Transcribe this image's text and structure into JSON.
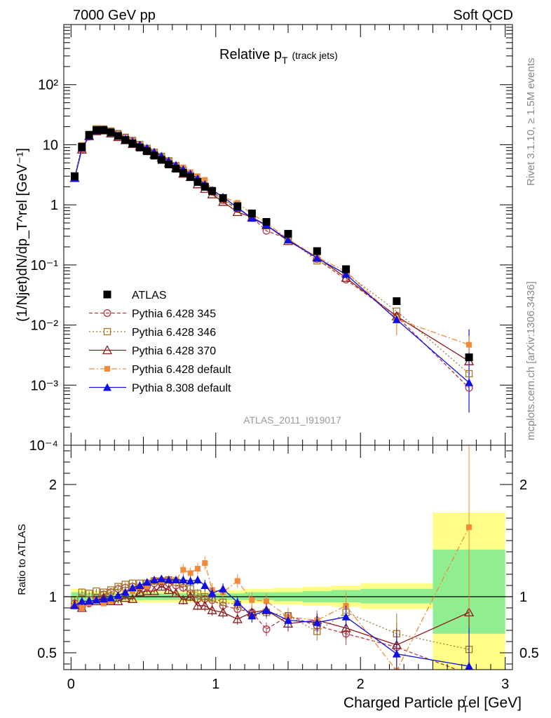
{
  "header": {
    "left": "7000 GeV pp",
    "right": "Soft QCD"
  },
  "side_labels": {
    "top": "Rivet 3.1.10, ≥ 1.5M events",
    "bottom": "mcplots.cern.ch [arXiv:1306.3436]"
  },
  "colors": {
    "atlas": "#000000",
    "p345": "#b03a48",
    "p346": "#a0782a",
    "p370": "#8b1a1a",
    "p6def": "#f28a3a",
    "p8def": "#1010e0",
    "band_green": "#90ee90",
    "band_yellow": "#ffff88"
  },
  "chart_data": [
    {
      "type": "scatter",
      "panel": "main",
      "title": "Relative p_T (track jets)",
      "title_main": "Relative p",
      "title_sub": "T",
      "title_note": "(track jets)",
      "ylabel": "(1/Njet)dN/dp_T^rel [GeV⁻¹]",
      "yscale": "log",
      "xlim": [
        -0.05,
        3.05
      ],
      "ylim": [
        0.0001,
        1000
      ],
      "y_tick_labels": [
        "10⁻⁴",
        "10⁻³",
        "10⁻²",
        "10⁻¹",
        "1",
        "10",
        "10²"
      ],
      "watermark": "ATLAS_2011_I919017",
      "legend_position": "lower-left",
      "x": [
        0.025,
        0.075,
        0.125,
        0.175,
        0.225,
        0.275,
        0.325,
        0.375,
        0.425,
        0.475,
        0.525,
        0.575,
        0.625,
        0.675,
        0.725,
        0.775,
        0.825,
        0.875,
        0.925,
        0.975,
        1.05,
        1.15,
        1.25,
        1.35,
        1.5,
        1.7,
        1.9,
        2.25,
        2.75
      ],
      "series": [
        {
          "name": "ATLAS",
          "key": "atlas",
          "marker": "square-filled",
          "line": "none",
          "y": [
            3.0,
            9.2,
            14.5,
            17.5,
            17.5,
            16.0,
            14.0,
            12.0,
            10.5,
            9.0,
            7.8,
            6.6,
            5.6,
            4.7,
            4.0,
            3.4,
            2.9,
            2.4,
            2.0,
            1.7,
            1.3,
            0.95,
            0.72,
            0.52,
            0.33,
            0.17,
            0.085,
            0.025,
            0.0029
          ]
        },
        {
          "name": "Pythia 6.428 345",
          "key": "p345",
          "marker": "circle-open",
          "line": "dashed",
          "y": [
            2.8,
            8.3,
            13.6,
            17.3,
            17.8,
            16.6,
            15.0,
            13.0,
            11.4,
            9.7,
            8.5,
            7.4,
            6.3,
            5.3,
            4.4,
            3.7,
            3.0,
            2.4,
            2.0,
            1.65,
            1.2,
            0.85,
            0.62,
            0.37,
            0.27,
            0.125,
            0.057,
            0.014,
            0.0009
          ]
        },
        {
          "name": "Pythia 6.428 346",
          "key": "p346",
          "marker": "square-open",
          "line": "dotted",
          "y": [
            2.9,
            9.6,
            14.9,
            18.4,
            18.3,
            16.9,
            15.3,
            13.3,
            11.8,
            10.1,
            8.7,
            7.5,
            6.4,
            5.4,
            4.5,
            3.8,
            3.1,
            2.5,
            2.0,
            1.68,
            1.24,
            0.88,
            0.6,
            0.45,
            0.27,
            0.117,
            0.073,
            0.017,
            0.00155
          ]
        },
        {
          "name": "Pythia 6.428 370",
          "key": "p370",
          "marker": "triangle-open",
          "line": "solid",
          "y": [
            2.8,
            8.3,
            13.9,
            16.8,
            17.3,
            15.4,
            13.4,
            11.9,
            10.3,
            9.4,
            8.2,
            6.9,
            6.1,
            5.0,
            4.1,
            3.3,
            2.9,
            2.2,
            1.85,
            1.5,
            1.12,
            0.76,
            0.62,
            0.46,
            0.25,
            0.135,
            0.061,
            0.014,
            0.0025
          ]
        },
        {
          "name": "Pythia 6.428 default",
          "key": "p6def",
          "marker": "square-filled-small",
          "line": "dashdot",
          "y": [
            2.8,
            8.3,
            13.6,
            17.0,
            16.4,
            15.4,
            14.0,
            12.5,
            11.0,
            9.8,
            8.5,
            7.6,
            6.4,
            5.4,
            4.6,
            4.2,
            3.5,
            3.0,
            2.6,
            1.8,
            1.35,
            1.08,
            0.7,
            0.5,
            0.27,
            0.135,
            0.078,
            0.0125,
            0.0047
          ]
        },
        {
          "name": "Pythia 8.308 default",
          "key": "p8def",
          "marker": "triangle-filled",
          "line": "solid",
          "y": [
            2.75,
            8.8,
            13.9,
            17.0,
            17.2,
            15.8,
            14.2,
            12.5,
            11.3,
            9.9,
            8.8,
            7.6,
            6.5,
            5.4,
            4.6,
            3.9,
            3.3,
            2.75,
            2.2,
            1.75,
            1.35,
            0.9,
            0.6,
            0.46,
            0.26,
            0.13,
            0.07,
            0.0123,
            0.0011
          ]
        }
      ]
    },
    {
      "type": "scatter",
      "panel": "ratio",
      "ylabel": "Ratio to ATLAS",
      "xlabel": "Charged Particle p_T^rel [GeV]",
      "xlabel_main": "Charged Particle p",
      "xlabel_sub": "T",
      "xlabel_sup": "r",
      "xlabel_rest": "el [GeV]",
      "xlim": [
        -0.05,
        3.05
      ],
      "ylim": [
        0.35,
        2.35
      ],
      "x_ticks": [
        0,
        1,
        2,
        3
      ],
      "x_tick_labels": [
        "0",
        "1",
        "2",
        "3"
      ],
      "y_ticks": [
        0.5,
        1,
        2
      ],
      "y_tick_labels": [
        "0.5",
        "1",
        "2"
      ],
      "bands": [
        {
          "x0": 0.0,
          "x1": 0.1,
          "green": [
            0.96,
            1.04
          ],
          "yellow": [
            0.93,
            1.07
          ]
        },
        {
          "x0": 0.1,
          "x1": 0.3,
          "green": [
            0.97,
            1.03
          ],
          "yellow": [
            0.95,
            1.05
          ]
        },
        {
          "x0": 0.3,
          "x1": 1.0,
          "green": [
            0.97,
            1.03
          ],
          "yellow": [
            0.95,
            1.05
          ]
        },
        {
          "x0": 1.0,
          "x1": 1.2,
          "green": [
            0.97,
            1.03
          ],
          "yellow": [
            0.94,
            1.06
          ]
        },
        {
          "x0": 1.2,
          "x1": 1.4,
          "green": [
            0.97,
            1.04
          ],
          "yellow": [
            0.94,
            1.07
          ]
        },
        {
          "x0": 1.4,
          "x1": 1.6,
          "green": [
            0.96,
            1.04
          ],
          "yellow": [
            0.93,
            1.08
          ]
        },
        {
          "x0": 1.6,
          "x1": 1.8,
          "green": [
            0.95,
            1.05
          ],
          "yellow": [
            0.92,
            1.09
          ]
        },
        {
          "x0": 1.8,
          "x1": 2.0,
          "green": [
            0.95,
            1.06
          ],
          "yellow": [
            0.91,
            1.1
          ]
        },
        {
          "x0": 2.0,
          "x1": 2.5,
          "green": [
            0.94,
            1.07
          ],
          "yellow": [
            0.89,
            1.12
          ]
        },
        {
          "x0": 2.5,
          "x1": 3.0,
          "green": [
            0.67,
            1.42
          ],
          "yellow": [
            0.35,
            1.75
          ]
        }
      ],
      "series": [
        {
          "name": "Pythia 6.428 345",
          "key": "p345",
          "y": [
            0.94,
            0.91,
            0.94,
            0.99,
            1.02,
            1.04,
            1.07,
            1.08,
            1.09,
            1.08,
            1.09,
            1.12,
            1.12,
            1.12,
            1.1,
            1.08,
            1.03,
            0.98,
            0.98,
            0.97,
            0.92,
            0.89,
            0.86,
            0.71,
            0.83,
            0.74,
            0.67,
            0.55,
            0.31
          ],
          "err": [
            0.03,
            0.03,
            0.03,
            0.02,
            0.02,
            0.02,
            0.02,
            0.02,
            0.02,
            0.02,
            0.02,
            0.02,
            0.03,
            0.03,
            0.03,
            0.04,
            0.04,
            0.04,
            0.05,
            0.05,
            0.05,
            0.05,
            0.06,
            0.06,
            0.07,
            0.08,
            0.1,
            0.22,
            0.4
          ]
        },
        {
          "name": "Pythia 6.428 346",
          "key": "p346",
          "y": [
            0.97,
            1.04,
            1.03,
            1.05,
            1.04,
            1.06,
            1.09,
            1.11,
            1.12,
            1.12,
            1.12,
            1.14,
            1.14,
            1.15,
            1.13,
            1.12,
            1.07,
            1.03,
            1.0,
            0.99,
            0.95,
            0.93,
            0.83,
            0.86,
            0.83,
            0.69,
            0.86,
            0.67,
            0.53
          ],
          "err": [
            0.03,
            0.03,
            0.02,
            0.02,
            0.02,
            0.02,
            0.02,
            0.02,
            0.02,
            0.02,
            0.02,
            0.02,
            0.03,
            0.03,
            0.03,
            0.04,
            0.04,
            0.04,
            0.05,
            0.05,
            0.05,
            0.05,
            0.06,
            0.06,
            0.07,
            0.08,
            0.1,
            0.18,
            0.3
          ]
        },
        {
          "name": "Pythia 6.428 370",
          "key": "p370",
          "y": [
            0.93,
            0.9,
            0.96,
            0.96,
            0.99,
            0.96,
            0.96,
            0.99,
            0.98,
            1.04,
            1.05,
            1.05,
            1.09,
            1.06,
            1.03,
            0.97,
            1.0,
            0.92,
            0.92,
            0.88,
            0.86,
            0.8,
            0.86,
            0.88,
            0.76,
            0.79,
            0.72,
            0.57,
            0.86
          ],
          "err": [
            0.03,
            0.03,
            0.02,
            0.02,
            0.02,
            0.02,
            0.02,
            0.02,
            0.02,
            0.02,
            0.02,
            0.02,
            0.03,
            0.03,
            0.03,
            0.04,
            0.04,
            0.04,
            0.05,
            0.05,
            0.05,
            0.05,
            0.06,
            0.06,
            0.07,
            0.08,
            0.1,
            0.15,
            0.55
          ]
        },
        {
          "name": "Pythia 6.428 default",
          "key": "p6def",
          "y": [
            0.92,
            0.9,
            0.94,
            0.97,
            0.94,
            0.96,
            1.0,
            1.04,
            1.05,
            1.09,
            1.09,
            1.15,
            1.14,
            1.15,
            1.15,
            1.24,
            1.21,
            1.25,
            1.3,
            1.06,
            1.04,
            1.14,
            0.97,
            0.96,
            0.82,
            0.79,
            0.92,
            0.34,
            1.62
          ],
          "err": [
            0.03,
            0.03,
            0.02,
            0.02,
            0.02,
            0.02,
            0.02,
            0.02,
            0.02,
            0.02,
            0.03,
            0.03,
            0.03,
            0.04,
            0.04,
            0.05,
            0.05,
            0.05,
            0.06,
            0.06,
            0.06,
            0.06,
            0.07,
            0.07,
            0.08,
            0.09,
            0.12,
            0.25,
            0.75
          ]
        },
        {
          "name": "Pythia 8.308 default",
          "key": "p8def",
          "y": [
            0.92,
            0.96,
            0.96,
            0.97,
            0.98,
            0.99,
            1.01,
            1.04,
            1.08,
            1.1,
            1.13,
            1.15,
            1.16,
            1.15,
            1.15,
            1.15,
            1.14,
            1.15,
            1.1,
            1.03,
            1.07,
            0.95,
            0.83,
            0.88,
            0.79,
            0.77,
            0.82,
            0.49,
            0.38
          ],
          "err": [
            0.03,
            0.03,
            0.02,
            0.02,
            0.02,
            0.02,
            0.02,
            0.02,
            0.02,
            0.02,
            0.02,
            0.02,
            0.03,
            0.03,
            0.03,
            0.04,
            0.04,
            0.04,
            0.05,
            0.05,
            0.05,
            0.05,
            0.06,
            0.06,
            0.07,
            0.08,
            0.1,
            0.18,
            0.35
          ]
        }
      ]
    }
  ]
}
